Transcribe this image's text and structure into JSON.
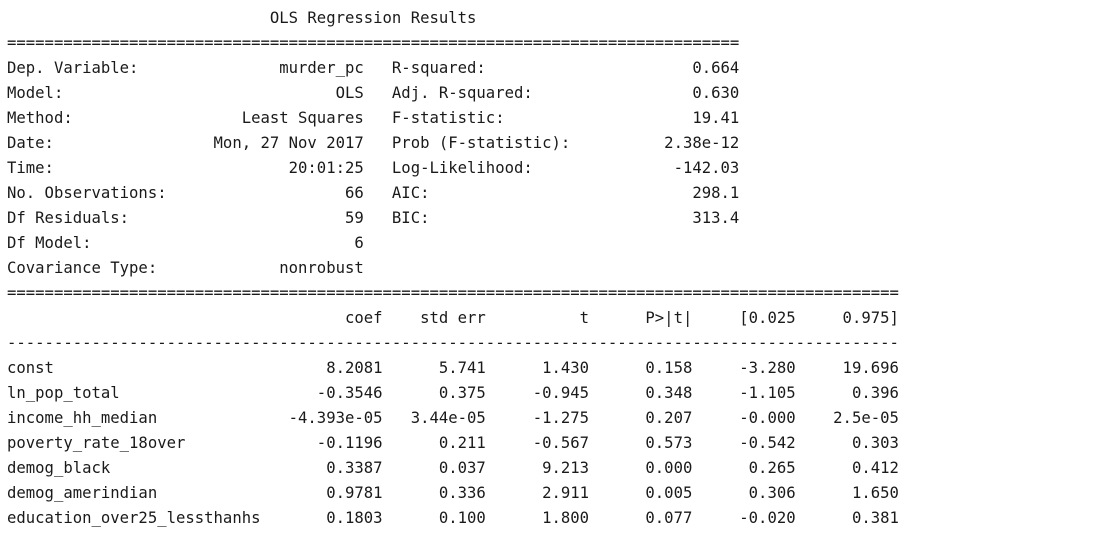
{
  "summary": {
    "title": "OLS Regression Results",
    "divider_top": "==============================================================================",
    "info_rows": [
      [
        "Dep. Variable:",
        "murder_pc",
        "R-squared:",
        "0.664"
      ],
      [
        "Model:",
        "OLS",
        "Adj. R-squared:",
        "0.630"
      ],
      [
        "Method:",
        "Least Squares",
        "F-statistic:",
        "19.41"
      ],
      [
        "Date:",
        "Mon, 27 Nov 2017",
        "Prob (F-statistic):",
        "2.38e-12"
      ],
      [
        "Time:",
        "20:01:25",
        "Log-Likelihood:",
        "-142.03"
      ],
      [
        "No. Observations:",
        "66",
        "AIC:",
        "298.1"
      ],
      [
        "Df Residuals:",
        "59",
        "BIC:",
        "313.4"
      ],
      [
        "Df Model:",
        "6",
        "",
        ""
      ],
      [
        "Covariance Type:",
        "nonrobust",
        "",
        ""
      ]
    ],
    "divider_wide": "===============================================================================================",
    "coef_headers": [
      "coef",
      "std err",
      "t",
      "P>|t|",
      "[0.025",
      "0.975]"
    ],
    "divider_dash": "-----------------------------------------------------------------------------------------------",
    "coef_rows": [
      [
        "const",
        "8.2081",
        "5.741",
        "1.430",
        "0.158",
        "-3.280",
        "19.696"
      ],
      [
        "ln_pop_total",
        "-0.3546",
        "0.375",
        "-0.945",
        "0.348",
        "-1.105",
        "0.396"
      ],
      [
        "income_hh_median",
        "-4.393e-05",
        "3.44e-05",
        "-1.275",
        "0.207",
        "-0.000",
        "2.5e-05"
      ],
      [
        "poverty_rate_18over",
        "-0.1196",
        "0.211",
        "-0.567",
        "0.573",
        "-0.542",
        "0.303"
      ],
      [
        "demog_black",
        "0.3387",
        "0.037",
        "9.213",
        "0.000",
        "0.265",
        "0.412"
      ],
      [
        "demog_amerindian",
        "0.9781",
        "0.336",
        "2.911",
        "0.005",
        "0.306",
        "1.650"
      ],
      [
        "education_over25_lessthanhs",
        "0.1803",
        "0.100",
        "1.800",
        "0.077",
        "-0.020",
        "0.381"
      ]
    ]
  }
}
